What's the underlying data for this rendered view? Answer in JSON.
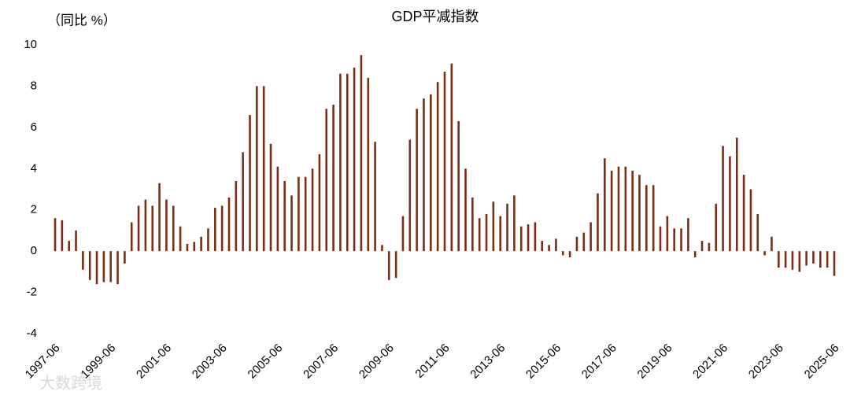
{
  "chart_data": {
    "type": "bar",
    "title": "GDP平减指数",
    "y_axis_label": "（同比 %）",
    "watermark": "大数跨境",
    "color": "#7a2e14",
    "categories": [
      "1997-06",
      null,
      null,
      null,
      null,
      null,
      null,
      null,
      "1999-06",
      null,
      null,
      null,
      null,
      null,
      null,
      null,
      "2001-06",
      null,
      null,
      null,
      null,
      null,
      null,
      null,
      "2003-06",
      null,
      null,
      null,
      null,
      null,
      null,
      null,
      "2005-06",
      null,
      null,
      null,
      null,
      null,
      null,
      null,
      "2007-06",
      null,
      null,
      null,
      null,
      null,
      null,
      null,
      "2009-06",
      null,
      null,
      null,
      null,
      null,
      null,
      null,
      "2011-06",
      null,
      null,
      null,
      null,
      null,
      null,
      null,
      "2013-06",
      null,
      null,
      null,
      null,
      null,
      null,
      null,
      "2015-06",
      null,
      null,
      null,
      null,
      null,
      null,
      null,
      "2017-06",
      null,
      null,
      null,
      null,
      null,
      null,
      null,
      "2019-06",
      null,
      null,
      null,
      null,
      null,
      null,
      null,
      "2021-06",
      null,
      null,
      null,
      null,
      null,
      null,
      null,
      "2023-06",
      null,
      null,
      null,
      null,
      null,
      null,
      null,
      "2025-06"
    ],
    "values": [
      1.6,
      1.5,
      0.5,
      1.0,
      -0.9,
      -1.4,
      -1.6,
      -1.5,
      -1.5,
      -1.6,
      -0.6,
      1.4,
      2.2,
      2.5,
      2.2,
      3.3,
      2.5,
      2.2,
      1.2,
      0.35,
      0.45,
      0.7,
      1.1,
      2.1,
      2.2,
      2.6,
      3.4,
      4.8,
      6.6,
      8.0,
      8.0,
      5.2,
      4.1,
      3.4,
      2.7,
      3.6,
      3.6,
      4.0,
      4.7,
      6.9,
      7.1,
      8.6,
      8.6,
      8.9,
      9.5,
      8.4,
      5.3,
      0.3,
      -1.4,
      -1.3,
      1.7,
      5.4,
      6.9,
      7.4,
      7.6,
      8.2,
      8.7,
      9.1,
      6.3,
      4.0,
      2.6,
      1.6,
      1.8,
      2.4,
      1.7,
      2.3,
      2.7,
      1.2,
      1.3,
      1.4,
      0.5,
      0.3,
      0.6,
      -0.2,
      -0.3,
      0.7,
      0.9,
      1.4,
      2.8,
      4.5,
      3.9,
      4.1,
      4.1,
      3.9,
      3.7,
      3.2,
      3.2,
      1.2,
      1.7,
      1.1,
      1.1,
      1.6,
      -0.3,
      0.5,
      0.4,
      2.3,
      5.1,
      4.6,
      5.5,
      3.7,
      3.0,
      1.8,
      -0.2,
      0.7,
      -0.8,
      -0.8,
      -0.9,
      -1.0,
      -0.7,
      -0.6,
      -0.8,
      -0.8,
      -1.2
    ],
    "ylim": [
      -4,
      10
    ],
    "yticks": [
      -4,
      -2,
      0,
      2,
      4,
      6,
      8,
      10
    ],
    "grid": false
  }
}
